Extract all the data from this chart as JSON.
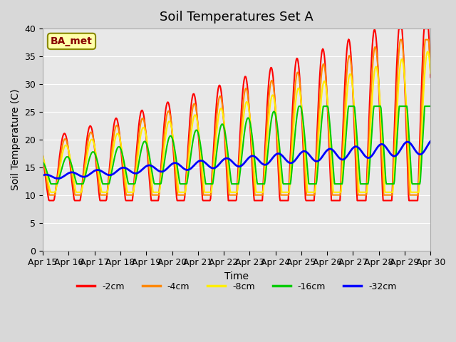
{
  "title": "Soil Temperatures Set A",
  "xlabel": "Time",
  "ylabel": "Soil Temperature (C)",
  "ylim": [
    0,
    40
  ],
  "yticks": [
    0,
    5,
    10,
    15,
    20,
    25,
    30,
    35,
    40
  ],
  "x_tick_labels": [
    "Apr 15",
    "Apr 16",
    "Apr 17",
    "Apr 18",
    "Apr 19",
    "Apr 20",
    "Apr 21",
    "Apr 22",
    "Apr 23",
    "Apr 24",
    "Apr 25",
    "Apr 26",
    "Apr 27",
    "Apr 28",
    "Apr 29",
    "Apr 30"
  ],
  "x_tick_positions": [
    0,
    1,
    2,
    3,
    4,
    5,
    6,
    7,
    8,
    9,
    10,
    11,
    12,
    13,
    14,
    15
  ],
  "colors": {
    "-2cm": "#ff0000",
    "-4cm": "#ff8800",
    "-8cm": "#ffee00",
    "-16cm": "#00cc00",
    "-32cm": "#0000ff"
  },
  "line_widths": {
    "-2cm": 1.5,
    "-4cm": 1.5,
    "-8cm": 1.5,
    "-16cm": 1.5,
    "-32cm": 2.0
  },
  "legend_labels": [
    "-2cm",
    "-4cm",
    "-8cm",
    "-16cm",
    "-32cm"
  ],
  "annotation_text": "BA_met",
  "annotation_fontsize": 10,
  "bg_color": "#e8e8e8",
  "fig_bg_color": "#d8d8d8",
  "title_fontsize": 13,
  "axis_fontsize": 10,
  "tick_fontsize": 9,
  "legend_fontsize": 9,
  "n_days": 15,
  "points_per_day": 48
}
